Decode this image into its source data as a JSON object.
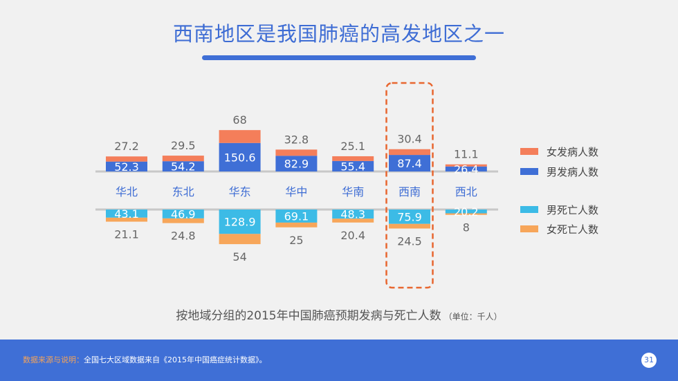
{
  "title": "西南地区是我国肺癌的高发地区之一",
  "subtitle": "按地域分组的2015年中国肺癌预期发病与死亡人数",
  "unit": "（单位：千人）",
  "footer": {
    "source_label": "数据来源与说明：",
    "source_text": "全国七大区域数据来自《2015年中国癌症统计数据》。",
    "page_number": "31"
  },
  "colors": {
    "female_incidence": "#f47e5a",
    "male_incidence": "#3f6fd6",
    "male_death": "#3cbbe6",
    "female_death": "#f7a65a",
    "highlight_box": "#e8662f",
    "region_label": "#3d6cd4"
  },
  "chart_data": {
    "type": "bar",
    "categories": [
      "华北",
      "东北",
      "华东",
      "华中",
      "华南",
      "西南",
      "西北"
    ],
    "highlighted_category": "西南",
    "series": [
      {
        "name": "女发病人数",
        "key": "female_incidence",
        "direction": "up",
        "values": [
          27.2,
          29.5,
          68,
          32.8,
          25.1,
          30.4,
          11.1
        ]
      },
      {
        "name": "男发病人数",
        "key": "male_incidence",
        "direction": "up",
        "values": [
          52.3,
          54.2,
          150.6,
          82.9,
          55.4,
          87.4,
          26.4
        ]
      },
      {
        "name": "男死亡人数",
        "key": "male_death",
        "direction": "down",
        "values": [
          43.1,
          46.9,
          128.9,
          69.1,
          48.3,
          75.9,
          20.2
        ]
      },
      {
        "name": "女死亡人数",
        "key": "female_death",
        "direction": "down",
        "values": [
          21.1,
          24.8,
          54,
          25,
          20.4,
          24.5,
          8
        ]
      }
    ],
    "value_labels": {
      "female_incidence": [
        "27.2",
        "29.5",
        "68",
        "32.8",
        "25.1",
        "30.4",
        "11.1"
      ],
      "male_incidence": [
        "52.3",
        "54.2",
        "150.6",
        "82.9",
        "55.4",
        "87.4",
        "26.4"
      ],
      "male_death": [
        "43.1",
        "46.9",
        "128.9",
        "69.1",
        "48.3",
        "75.9",
        "20.2"
      ],
      "female_death": [
        "21.1",
        "24.8",
        "54",
        "25",
        "20.4",
        "24.5",
        "8"
      ]
    },
    "legend": [
      "女发病人数",
      "男发病人数",
      "男死亡人数",
      "女死亡人数"
    ],
    "legend_position": "right",
    "grid": false
  }
}
